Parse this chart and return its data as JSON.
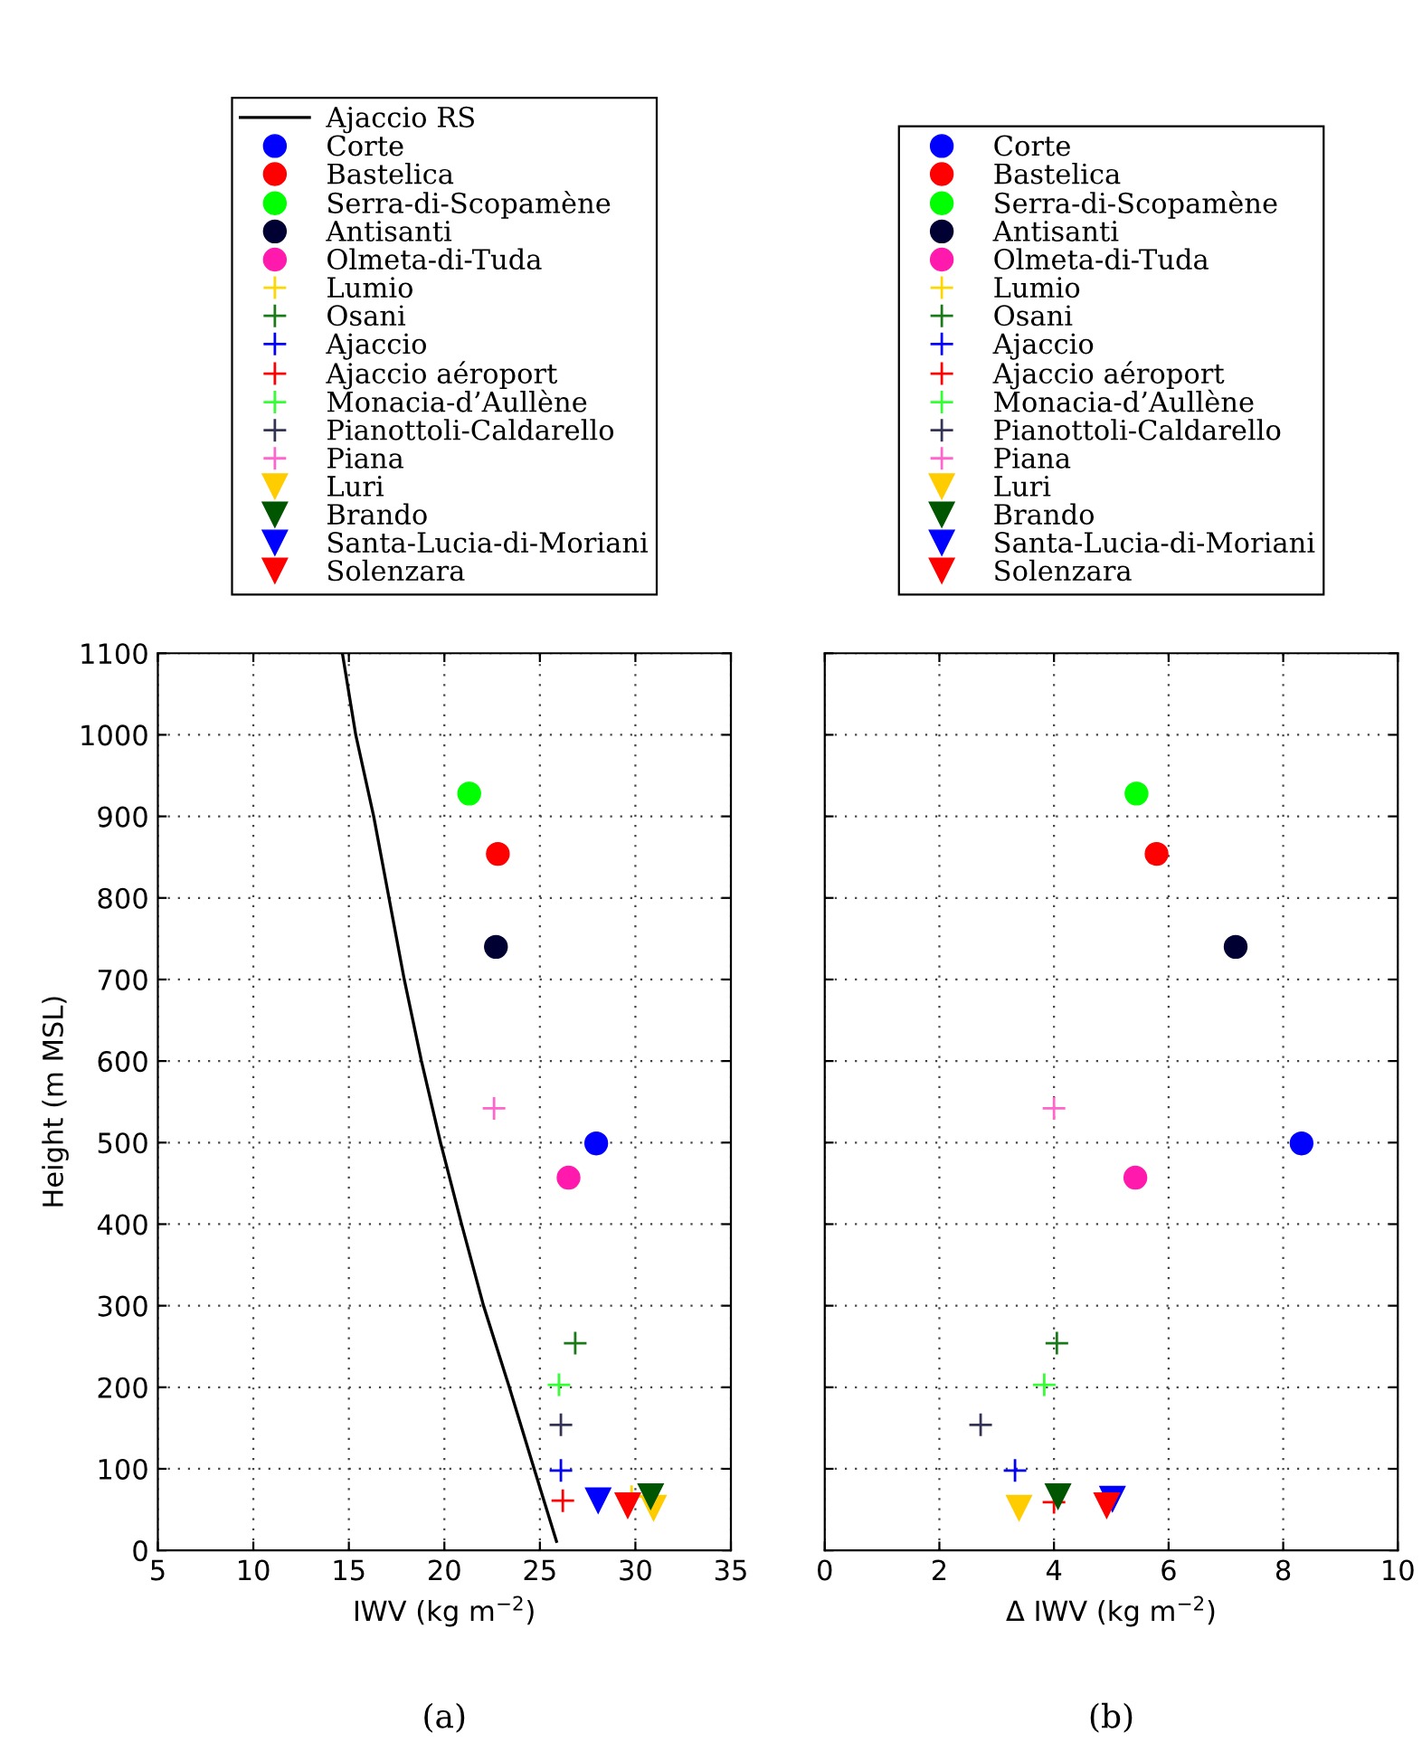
{
  "chart_data": [
    {
      "type": "scatter",
      "xlabel": "IWV (kg m$^{−2}$)",
      "ylabel": "Height (m MSL)",
      "xlim": [
        5,
        35
      ],
      "xticks": [
        5,
        10,
        15,
        20,
        25,
        30,
        35
      ],
      "ylim": [
        0,
        1100
      ],
      "yticks": [
        0,
        100,
        200,
        300,
        400,
        500,
        600,
        700,
        800,
        900,
        1000,
        1100
      ],
      "grid": true,
      "legend": "top",
      "annotations": [
        "(a)"
      ],
      "series": [
        {
          "name": "Ajaccio RS",
          "type": "line",
          "color": "#000000",
          "marker": "none",
          "x": [
            14.66,
            15.36,
            16.3,
            17.1,
            17.9,
            18.8,
            19.8,
            20.9,
            22.05,
            23.4,
            24.7,
            25.87
          ],
          "values": [
            1100,
            1000,
            900,
            800,
            700,
            600,
            500,
            400,
            300,
            200,
            100,
            11
          ]
        },
        {
          "name": "Corte",
          "color": "#0000ff",
          "marker": "circle",
          "x": [
            27.95
          ],
          "values": [
            499
          ]
        },
        {
          "name": "Bastelica",
          "color": "#ff0000",
          "marker": "circle",
          "x": [
            22.8
          ],
          "values": [
            854
          ]
        },
        {
          "name": "Serra-di-Scopamène",
          "color": "#00ff00",
          "marker": "circle",
          "x": [
            21.3
          ],
          "values": [
            928
          ]
        },
        {
          "name": "Antisanti",
          "color": "#000033",
          "marker": "circle",
          "x": [
            22.7
          ],
          "values": [
            740
          ]
        },
        {
          "name": "Olmeta-di-Tuda",
          "color": "#ff1aad",
          "marker": "circle",
          "x": [
            26.5
          ],
          "values": [
            457
          ]
        },
        {
          "name": "Lumio",
          "color": "#ffd700",
          "marker": "cross",
          "x": [
            29.8
          ],
          "values": [
            66
          ]
        },
        {
          "name": "Osani",
          "color": "#1a7a1a",
          "marker": "cross",
          "x": [
            26.85
          ],
          "values": [
            254
          ]
        },
        {
          "name": "Ajaccio",
          "color": "#0000ff",
          "marker": "cross",
          "x": [
            26.1
          ],
          "values": [
            98
          ]
        },
        {
          "name": "Ajaccio aéroport",
          "color": "#ff0000",
          "marker": "cross",
          "x": [
            26.2
          ],
          "values": [
            61
          ]
        },
        {
          "name": "Monacia-d’Aullène",
          "color": "#33ff33",
          "marker": "cross",
          "x": [
            26.0
          ],
          "values": [
            203
          ]
        },
        {
          "name": "Pianottoli-Caldarello",
          "color": "#333355",
          "marker": "cross",
          "x": [
            26.1
          ],
          "values": [
            154
          ]
        },
        {
          "name": "Piana",
          "color": "#ff66cc",
          "marker": "cross",
          "x": [
            22.6
          ],
          "values": [
            542
          ]
        },
        {
          "name": "Luri",
          "color": "#ffcc00",
          "marker": "triangle",
          "x": [
            30.95
          ],
          "values": [
            52
          ]
        },
        {
          "name": "Brando",
          "color": "#005500",
          "marker": "triangle",
          "x": [
            30.8
          ],
          "values": [
            66
          ]
        },
        {
          "name": "Santa-Lucia-di-Moriani",
          "color": "#0000ff",
          "marker": "triangle",
          "x": [
            28.05
          ],
          "values": [
            61
          ]
        },
        {
          "name": "Solenzara",
          "color": "#ff0000",
          "marker": "triangle",
          "x": [
            29.6
          ],
          "values": [
            55
          ]
        }
      ]
    },
    {
      "type": "scatter",
      "xlabel": "Δ IWV (kg m$^{−2}$)",
      "xlim": [
        0,
        10
      ],
      "xticks": [
        0,
        2,
        4,
        6,
        8,
        10
      ],
      "ylim": [
        0,
        1100
      ],
      "yticks": [
        0,
        100,
        200,
        300,
        400,
        500,
        600,
        700,
        800,
        900,
        1000,
        1100
      ],
      "tick_labels": "x",
      "grid": true,
      "legend": "top",
      "annotations": [
        "(b)"
      ],
      "series": [
        {
          "name": "Corte",
          "color": "#0000ff",
          "marker": "circle",
          "x": [
            8.32
          ],
          "values": [
            499
          ]
        },
        {
          "name": "Bastelica",
          "color": "#ff0000",
          "marker": "circle",
          "x": [
            5.79
          ],
          "values": [
            854
          ]
        },
        {
          "name": "Serra-di-Scopamène",
          "color": "#00ff00",
          "marker": "circle",
          "x": [
            5.44
          ],
          "values": [
            928
          ]
        },
        {
          "name": "Antisanti",
          "color": "#000033",
          "marker": "circle",
          "x": [
            7.17
          ],
          "values": [
            740
          ]
        },
        {
          "name": "Olmeta-di-Tuda",
          "color": "#ff1aad",
          "marker": "circle",
          "x": [
            5.42
          ],
          "values": [
            457
          ]
        },
        {
          "name": "Lumio",
          "color": "#ffd700",
          "marker": "cross",
          "x": [
            null
          ],
          "values": [
            null
          ]
        },
        {
          "name": "Osani",
          "color": "#1a7a1a",
          "marker": "cross",
          "x": [
            4.05
          ],
          "values": [
            254
          ]
        },
        {
          "name": "Ajaccio",
          "color": "#0000ff",
          "marker": "cross",
          "x": [
            3.32
          ],
          "values": [
            98
          ]
        },
        {
          "name": "Ajaccio aéroport",
          "color": "#ff0000",
          "marker": "cross",
          "x": [
            4.0
          ],
          "values": [
            59
          ]
        },
        {
          "name": "Monacia-d’Aullène",
          "color": "#33ff33",
          "marker": "cross",
          "x": [
            3.83
          ],
          "values": [
            203
          ]
        },
        {
          "name": "Pianottoli-Caldarello",
          "color": "#333355",
          "marker": "cross",
          "x": [
            2.72
          ],
          "values": [
            154
          ]
        },
        {
          "name": "Piana",
          "color": "#ff66cc",
          "marker": "cross",
          "x": [
            4.0
          ],
          "values": [
            542
          ]
        },
        {
          "name": "Luri",
          "color": "#ffcc00",
          "marker": "triangle",
          "x": [
            3.39
          ],
          "values": [
            52
          ]
        },
        {
          "name": "Brando",
          "color": "#005500",
          "marker": "triangle",
          "x": [
            4.07
          ],
          "values": [
            66
          ]
        },
        {
          "name": "Santa-Lucia-di-Moriani",
          "color": "#0000ff",
          "marker": "triangle",
          "x": [
            5.02
          ],
          "values": [
            63
          ]
        },
        {
          "name": "Solenzara",
          "color": "#ff0000",
          "marker": "triangle",
          "x": [
            4.92
          ],
          "values": [
            55
          ]
        }
      ]
    }
  ]
}
